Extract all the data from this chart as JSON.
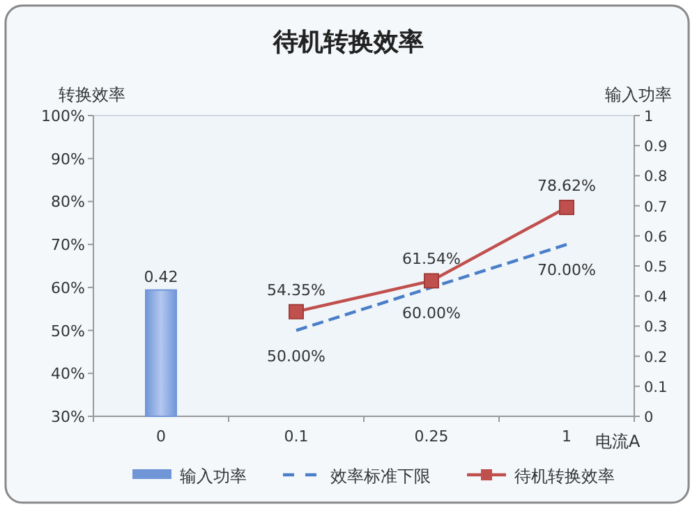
{
  "chart_data": {
    "type": "line",
    "title": "待机转换效率",
    "xlabel": "电流A",
    "ylabel": "转换效率",
    "y2label": "输入功率",
    "categories": [
      "0",
      "0.1",
      "0.25",
      "1"
    ],
    "series": [
      {
        "name": "输入功率",
        "type": "bar",
        "axis": "y2",
        "color": "#7096d8",
        "values": [
          0.42,
          null,
          null,
          null
        ],
        "value_labels": [
          "0.42",
          null,
          null,
          null
        ]
      },
      {
        "name": "效率标准下限",
        "color": "#4a7ec8",
        "line_style": "dashed",
        "marker": "none",
        "values": [
          null,
          50,
          60,
          70
        ],
        "value_labels": [
          null,
          "50.00%",
          "60.00%",
          "70.00%"
        ]
      },
      {
        "name": "待机转换效率",
        "color": "#c0504d",
        "line_style": "solid",
        "marker": "square",
        "values": [
          null,
          54.35,
          61.54,
          78.62
        ],
        "value_labels": [
          null,
          "54.35%",
          "61.54%",
          "78.62%"
        ]
      }
    ],
    "ylim": [
      30,
      100
    ],
    "yticks": [
      {
        "value": 30,
        "label": "30%"
      },
      {
        "value": 40,
        "label": "40%"
      },
      {
        "value": 50,
        "label": "50%"
      },
      {
        "value": 60,
        "label": "60%"
      },
      {
        "value": 70,
        "label": "70%"
      },
      {
        "value": 80,
        "label": "80%"
      },
      {
        "value": 90,
        "label": "90%"
      },
      {
        "value": 100,
        "label": "100%"
      }
    ],
    "y2lim": [
      0,
      1
    ],
    "y2ticks": [
      0,
      0.1,
      0.2,
      0.3,
      0.4,
      0.5,
      0.6,
      0.7,
      0.8,
      0.9,
      1
    ],
    "grid": false,
    "legend": "bottom"
  }
}
